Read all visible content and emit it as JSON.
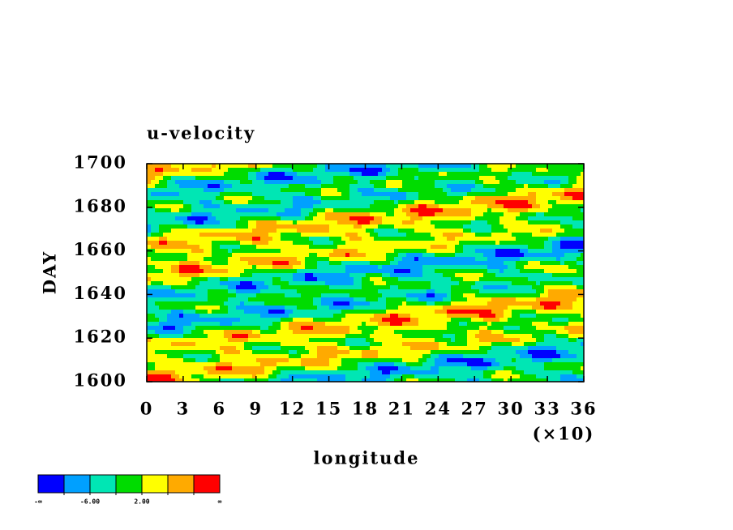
{
  "chart_data": {
    "type": "contour",
    "title": "u-velocity",
    "x_label": "longitude",
    "y_label": "DAY",
    "x_scale_note": "(×10)",
    "xlim": [
      0,
      36
    ],
    "xticks": [
      0,
      3,
      6,
      9,
      12,
      15,
      18,
      21,
      24,
      27,
      30,
      33,
      36
    ],
    "ylim": [
      1600,
      1700
    ],
    "yticks": [
      1600,
      1620,
      1640,
      1660,
      1680,
      1700
    ],
    "colorbar": {
      "colors": [
        "#0000ff",
        "#00a0ff",
        "#00e6b4",
        "#00dc00",
        "#ffff00",
        "#ffaa00",
        "#ff0000"
      ],
      "levels": [
        -10,
        -6,
        -2,
        2,
        6,
        10
      ],
      "ticks": [
        {
          "value": -6,
          "label": "-6.00"
        },
        {
          "value": 2,
          "label": "2.00"
        }
      ],
      "ends": [
        "-∞",
        "∞"
      ]
    }
  }
}
